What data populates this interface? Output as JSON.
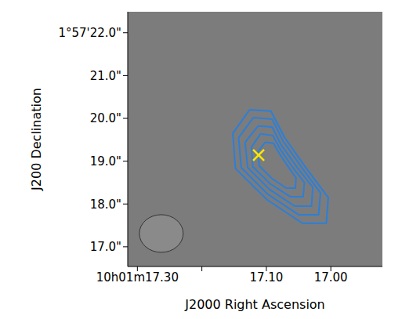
{
  "chart_data": {
    "type": "contour",
    "xlabel": "J2000 Right Ascension",
    "ylabel": "J200 Declination",
    "xlim": [
      17.315,
      16.92
    ],
    "ylim": [
      16.54,
      22.49
    ],
    "xticks": [
      {
        "value": 17.3,
        "label": "10h01m17.30"
      },
      {
        "value": 17.2,
        "label": null
      },
      {
        "value": 17.1,
        "label": "17.10"
      },
      {
        "value": 17.0,
        "label": "17.00"
      }
    ],
    "yticks": [
      {
        "value": 17,
        "label": "17.0\""
      },
      {
        "value": 18,
        "label": "18.0\""
      },
      {
        "value": 19,
        "label": "19.0\""
      },
      {
        "value": 20,
        "label": "20.0\""
      },
      {
        "value": 21,
        "label": "21.0\""
      },
      {
        "value": 22,
        "label": "1°57'22.0\""
      }
    ],
    "image_color": "#7c7c7c",
    "contours": {
      "color": "#2b7fd9",
      "levels": [
        [
          [
            17.126,
            20.2
          ],
          [
            17.093,
            20.17
          ],
          [
            17.072,
            19.56
          ],
          [
            17.038,
            18.83
          ],
          [
            17.004,
            18.15
          ],
          [
            17.007,
            17.55
          ],
          [
            17.044,
            17.55
          ],
          [
            17.099,
            18.1
          ],
          [
            17.148,
            18.83
          ],
          [
            17.152,
            19.65
          ]
        ],
        [
          [
            17.12,
            20.02
          ],
          [
            17.091,
            19.98
          ],
          [
            17.074,
            19.47
          ],
          [
            17.045,
            18.85
          ],
          [
            17.016,
            18.26
          ],
          [
            17.019,
            17.75
          ],
          [
            17.05,
            17.75
          ],
          [
            17.098,
            18.23
          ],
          [
            17.139,
            18.85
          ],
          [
            17.143,
            19.55
          ]
        ],
        [
          [
            17.113,
            19.82
          ],
          [
            17.091,
            19.8
          ],
          [
            17.077,
            19.38
          ],
          [
            17.052,
            18.85
          ],
          [
            17.028,
            18.39
          ],
          [
            17.03,
            17.95
          ],
          [
            17.056,
            17.95
          ],
          [
            17.095,
            18.34
          ],
          [
            17.129,
            18.85
          ],
          [
            17.133,
            19.44
          ]
        ],
        [
          [
            17.109,
            19.64
          ],
          [
            17.09,
            19.6
          ],
          [
            17.078,
            19.27
          ],
          [
            17.06,
            18.87
          ],
          [
            17.041,
            18.5
          ],
          [
            17.043,
            18.17
          ],
          [
            17.063,
            18.17
          ],
          [
            17.094,
            18.47
          ],
          [
            17.121,
            18.87
          ],
          [
            17.123,
            19.33
          ]
        ],
        [
          [
            17.102,
            19.44
          ],
          [
            17.089,
            19.42
          ],
          [
            17.08,
            19.18
          ],
          [
            17.067,
            18.89
          ],
          [
            17.054,
            18.61
          ],
          [
            17.055,
            18.37
          ],
          [
            17.069,
            18.37
          ],
          [
            17.091,
            18.59
          ],
          [
            17.111,
            18.89
          ],
          [
            17.113,
            19.22
          ]
        ]
      ]
    },
    "source": {
      "x": 17.112,
      "y": 19.14,
      "color": "#ffe600",
      "marker": "x"
    },
    "beam": {
      "ra": [
        17.297,
        17.229
      ],
      "dec": [
        16.87,
        17.75
      ],
      "color": "#8a8a8a"
    }
  }
}
